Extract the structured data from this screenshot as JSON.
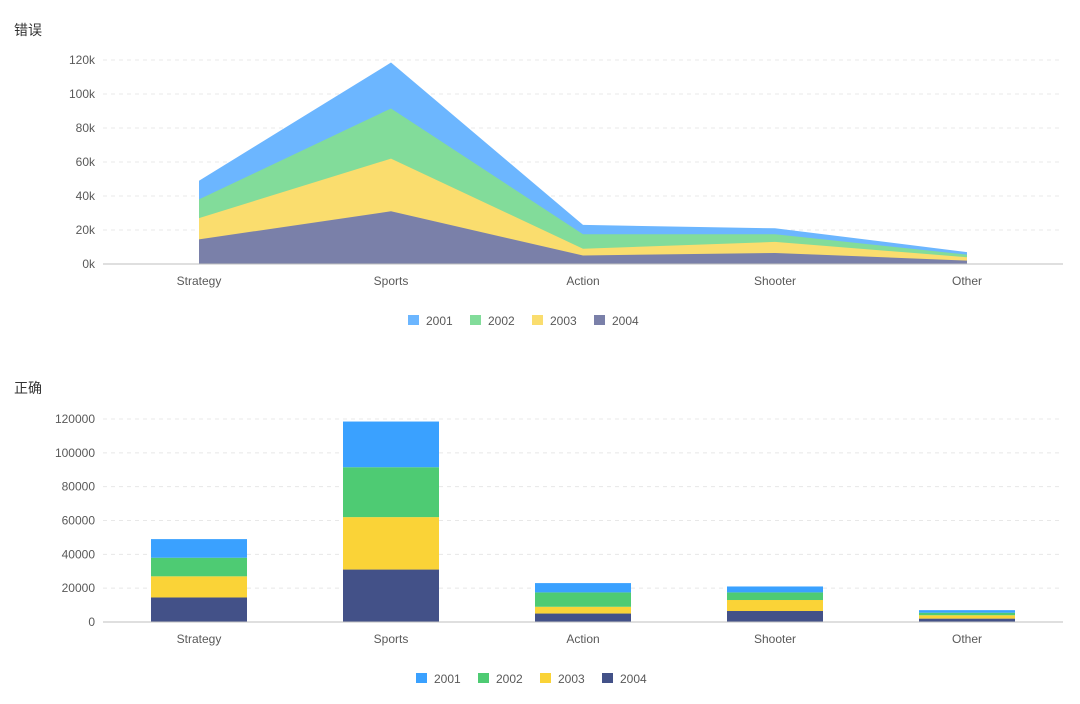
{
  "chart_data": [
    {
      "type": "area",
      "stacked": true,
      "title": "错误",
      "categories": [
        "Strategy",
        "Sports",
        "Action",
        "Shooter",
        "Other"
      ],
      "series": [
        {
          "name": "2004",
          "values": [
            14500,
            31000,
            5000,
            6500,
            2000
          ]
        },
        {
          "name": "2003",
          "values": [
            12500,
            31000,
            4000,
            6500,
            2000
          ]
        },
        {
          "name": "2002",
          "values": [
            11000,
            29500,
            8500,
            4500,
            1500
          ]
        },
        {
          "name": "2001",
          "values": [
            11000,
            27000,
            5500,
            3500,
            1500
          ]
        }
      ],
      "colors": {
        "2001": "#6cb6ff",
        "2002": "#82dc9a",
        "2003": "#fadd6e",
        "2004": "#7a80a9"
      },
      "legend_order": [
        "2001",
        "2002",
        "2003",
        "2004"
      ],
      "ylim": [
        0,
        120000
      ],
      "yticks": [
        "0k",
        "20k",
        "40k",
        "60k",
        "80k",
        "100k",
        "120k"
      ],
      "grid": true,
      "legend_position": "bottom"
    },
    {
      "type": "bar",
      "stacked": true,
      "title": "正确",
      "categories": [
        "Strategy",
        "Sports",
        "Action",
        "Shooter",
        "Other"
      ],
      "series": [
        {
          "name": "2004",
          "values": [
            14500,
            31000,
            5000,
            6500,
            2000
          ]
        },
        {
          "name": "2003",
          "values": [
            12500,
            31000,
            4000,
            6500,
            2000
          ]
        },
        {
          "name": "2002",
          "values": [
            11000,
            29500,
            8500,
            4500,
            1500
          ]
        },
        {
          "name": "2001",
          "values": [
            11000,
            27000,
            5500,
            3500,
            1500
          ]
        }
      ],
      "colors": {
        "2001": "#3aa1ff",
        "2002": "#4ecb73",
        "2003": "#fad337",
        "2004": "#435188"
      },
      "legend_order": [
        "2001",
        "2002",
        "2003",
        "2004"
      ],
      "ylim": [
        0,
        120000
      ],
      "yticks": [
        "0",
        "20000",
        "40000",
        "60000",
        "80000",
        "100000",
        "120000"
      ],
      "grid": true,
      "legend_position": "bottom"
    }
  ]
}
